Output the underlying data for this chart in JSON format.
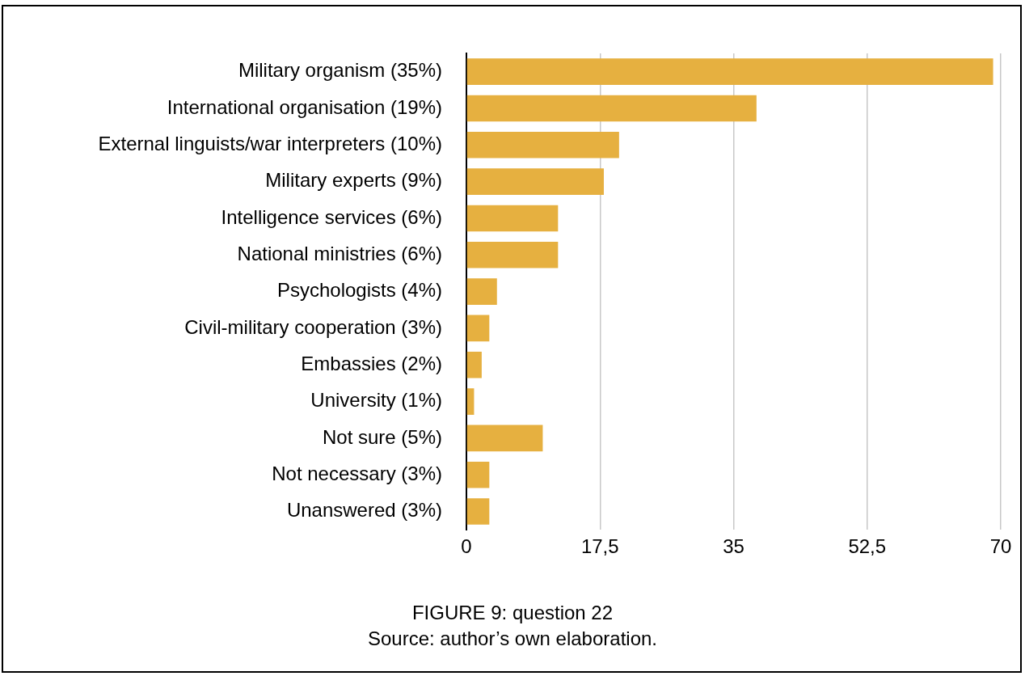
{
  "chart_data": {
    "type": "bar",
    "orientation": "horizontal",
    "categories": [
      "Military organism (35%)",
      "International organisation (19%)",
      "External linguists/war interpreters (10%)",
      "Military experts (9%)",
      "Intelligence services (6%)",
      "National ministries (6%)",
      "Psychologists (4%)",
      "Civil-military cooperation (3%)",
      "Embassies (2%)",
      "University (1%)",
      "Not sure (5%)",
      "Not necessary (3%)",
      "Unanswered (3%)"
    ],
    "values": [
      69,
      38,
      20,
      18,
      12,
      12,
      4,
      3,
      2,
      1,
      10,
      3,
      3
    ],
    "color": "#e6b040",
    "xlim": [
      0,
      70
    ],
    "xticks": [
      0,
      {
        "value": 17.5,
        "label": "17,5"
      },
      35,
      {
        "value": 52.5,
        "label": "52,5"
      },
      70
    ],
    "grid": "x",
    "legend": false,
    "annotations": [
      "FIGURE 9: question 22",
      "Source: author’s own elaboration."
    ]
  }
}
